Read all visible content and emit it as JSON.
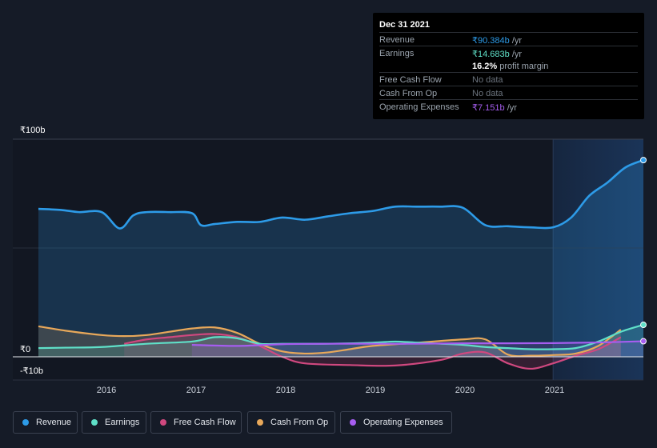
{
  "tooltip": {
    "date": "Dec 31 2021",
    "rows": [
      {
        "label": "Revenue",
        "value": "₹90.384b",
        "unit": " /yr",
        "color": "#2d9be8"
      },
      {
        "label": "Earnings",
        "value": "₹14.683b",
        "unit": " /yr",
        "color": "#5fe0c8"
      },
      {
        "label": "",
        "value": "16.2%",
        "unit": " profit margin",
        "color": "#ffffff"
      },
      {
        "label": "Free Cash Flow",
        "value": "No data",
        "unit": "",
        "color": "#6b737d"
      },
      {
        "label": "Cash From Op",
        "value": "No data",
        "unit": "",
        "color": "#6b737d"
      },
      {
        "label": "Operating Expenses",
        "value": "₹7.151b",
        "unit": " /yr",
        "color": "#a65df0"
      }
    ]
  },
  "legend": [
    {
      "label": "Revenue",
      "color": "#2d9be8"
    },
    {
      "label": "Earnings",
      "color": "#5fe0c8"
    },
    {
      "label": "Free Cash Flow",
      "color": "#d0487f"
    },
    {
      "label": "Cash From Op",
      "color": "#e8a85a"
    },
    {
      "label": "Operating Expenses",
      "color": "#a65df0"
    }
  ],
  "chart_data": {
    "type": "line",
    "ylabels": [
      "₹100b",
      "₹0",
      "-₹10b"
    ],
    "ylim": [
      -10,
      100
    ],
    "xlim": [
      2015.3,
      2022.0
    ],
    "xticks": [
      "2016",
      "2017",
      "2018",
      "2019",
      "2020",
      "2021"
    ],
    "highlight_start": 2021.0,
    "series": [
      {
        "name": "Revenue",
        "color": "#2d9be8",
        "fill": true,
        "x": [
          2015.3,
          2015.55,
          2015.75,
          2016.0,
          2016.2,
          2016.35,
          2016.5,
          2016.75,
          2017.0,
          2017.1,
          2017.25,
          2017.5,
          2017.75,
          2018.0,
          2018.25,
          2018.5,
          2018.75,
          2019.0,
          2019.25,
          2019.5,
          2019.75,
          2020.0,
          2020.25,
          2020.5,
          2020.75,
          2021.0,
          2021.2,
          2021.4,
          2021.6,
          2021.8,
          2022.0
        ],
        "y": [
          68,
          67.5,
          66.5,
          66.5,
          59,
          65,
          66.5,
          66.5,
          66,
          60.5,
          61,
          62,
          62,
          64,
          63,
          64.5,
          66,
          67,
          69,
          69,
          69,
          68.5,
          60.5,
          60,
          59.5,
          59.5,
          64,
          74,
          80,
          87,
          90.4
        ]
      },
      {
        "name": "Earnings",
        "color": "#5fe0c8",
        "fill": true,
        "x": [
          2015.3,
          2015.6,
          2016.0,
          2016.5,
          2017.0,
          2017.25,
          2017.5,
          2017.75,
          2018.0,
          2018.5,
          2019.0,
          2019.25,
          2019.5,
          2019.75,
          2020.0,
          2020.25,
          2020.5,
          2020.75,
          2021.0,
          2021.25,
          2021.5,
          2021.75,
          2022.0
        ],
        "y": [
          4,
          4.2,
          4.5,
          6,
          7,
          9,
          8.5,
          6,
          6,
          6,
          6.5,
          7,
          6.5,
          6,
          5.5,
          4.5,
          4,
          3.5,
          3.5,
          4,
          7,
          11.5,
          14.7
        ]
      },
      {
        "name": "Free Cash Flow",
        "color": "#d0487f",
        "fill": true,
        "x": [
          2016.25,
          2016.5,
          2016.75,
          2017.0,
          2017.25,
          2017.5,
          2017.75,
          2018.0,
          2018.25,
          2018.75,
          2019.25,
          2019.75,
          2020.0,
          2020.25,
          2020.5,
          2020.75,
          2021.0,
          2021.25,
          2021.5,
          2021.75
        ],
        "y": [
          6,
          8,
          9,
          10,
          10.5,
          9,
          5,
          0,
          -3,
          -3.8,
          -4,
          -1.5,
          1.5,
          2,
          -3,
          -5.5,
          -3,
          0.5,
          3.5,
          9
        ]
      },
      {
        "name": "Cash From Op",
        "color": "#e8a85a",
        "fill": true,
        "x": [
          2015.3,
          2015.6,
          2016.0,
          2016.25,
          2016.5,
          2016.75,
          2017.0,
          2017.25,
          2017.5,
          2017.75,
          2018.0,
          2018.25,
          2018.5,
          2018.75,
          2019.0,
          2019.5,
          2020.0,
          2020.25,
          2020.5,
          2020.75,
          2021.0,
          2021.25,
          2021.5,
          2021.75
        ],
        "y": [
          14,
          12,
          10,
          9.5,
          10,
          11.5,
          13,
          13.5,
          11,
          6,
          2.5,
          1.5,
          2,
          3.5,
          5,
          6.5,
          8,
          8,
          1,
          0.5,
          0.8,
          1.5,
          5,
          12.5
        ]
      },
      {
        "name": "Operating Expenses",
        "color": "#a65df0",
        "fill": true,
        "x": [
          2017.0,
          2017.5,
          2018.0,
          2018.5,
          2019.0,
          2019.5,
          2020.0,
          2020.5,
          2021.0,
          2021.5,
          2022.0
        ],
        "y": [
          5.5,
          5,
          5.8,
          6,
          6,
          6,
          6.2,
          6.2,
          6.3,
          6.6,
          7.15
        ]
      }
    ]
  }
}
